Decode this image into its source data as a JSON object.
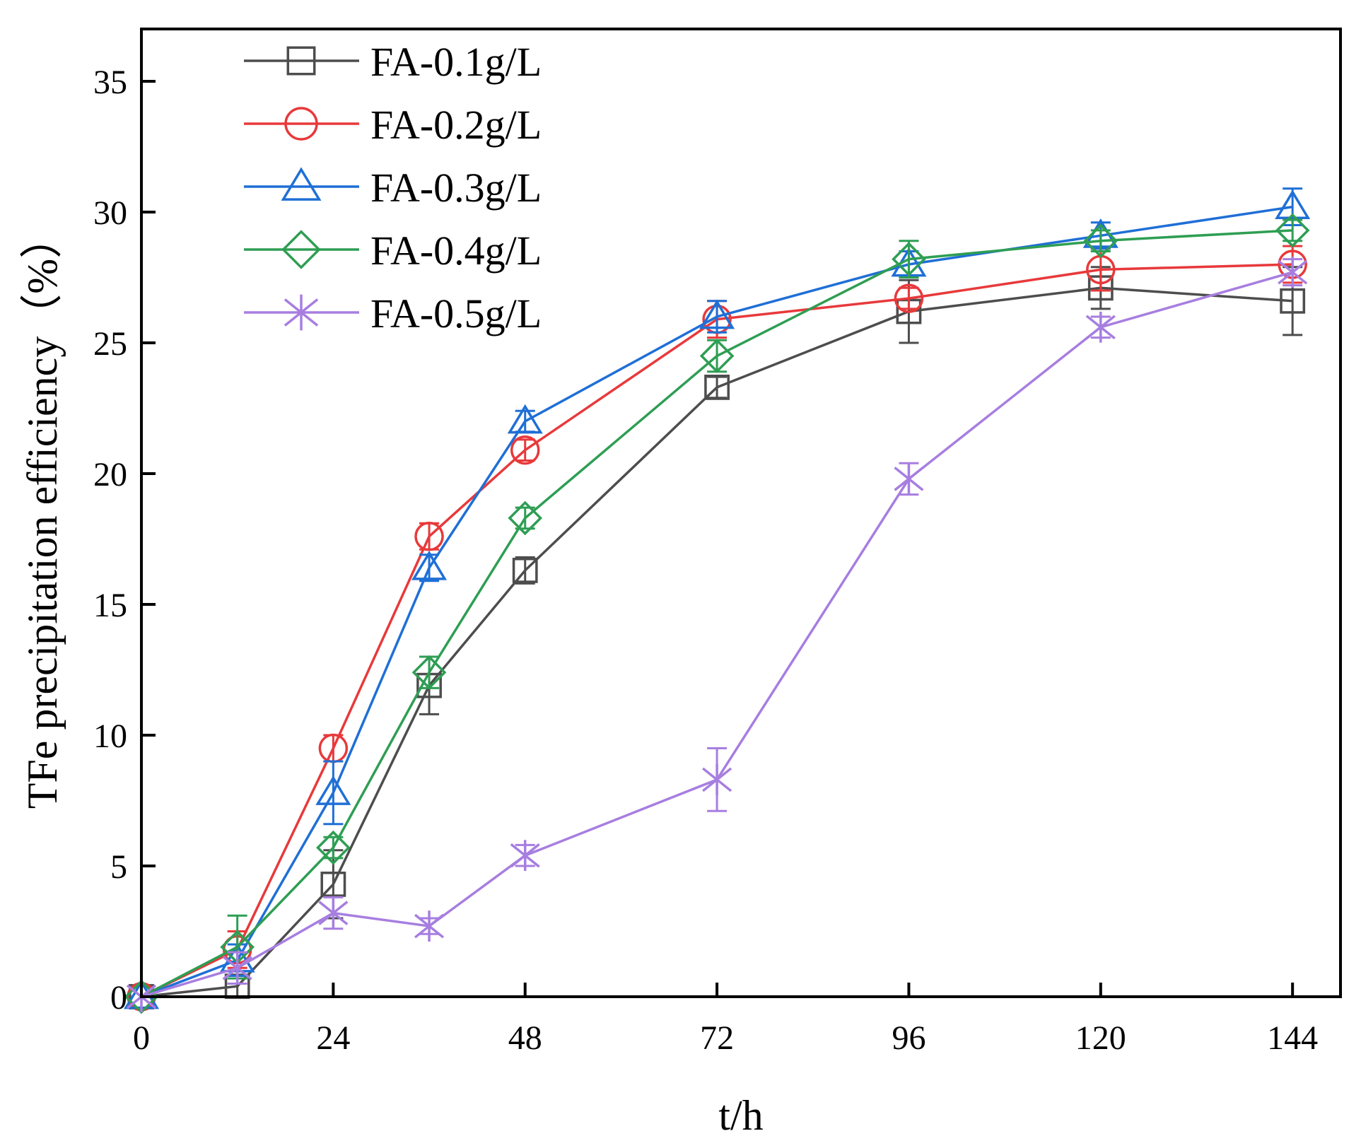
{
  "chart_data": {
    "type": "line",
    "title": "",
    "xlabel": "t/h",
    "ylabel": "TFe precipitation efficiency (%)",
    "ylabel_parts": [
      "TFe precipitation efficiency（",
      "%",
      "）"
    ],
    "xlim": [
      0,
      150
    ],
    "ylim": [
      0,
      37
    ],
    "xticks": [
      0,
      24,
      48,
      72,
      96,
      120,
      144
    ],
    "yticks": [
      0,
      5,
      10,
      15,
      20,
      25,
      30,
      35
    ],
    "x": [
      0,
      12,
      24,
      36,
      48,
      72,
      96,
      120,
      144
    ],
    "legend_position": "top-left",
    "series": [
      {
        "name": "FA-0.1g/L",
        "color": "#4d4d4d",
        "marker": "square",
        "values": [
          0,
          0.4,
          4.3,
          11.9,
          16.3,
          23.3,
          26.2,
          27.1,
          26.6
        ],
        "errors": [
          0,
          0.4,
          1.3,
          1.1,
          0.5,
          0.4,
          1.2,
          0.8,
          1.3
        ]
      },
      {
        "name": "FA-0.2g/L",
        "color": "#e8393b",
        "marker": "circle",
        "values": [
          0,
          1.8,
          9.5,
          17.6,
          20.9,
          25.9,
          26.7,
          27.8,
          28.0
        ],
        "errors": [
          0,
          0.7,
          0.5,
          0.5,
          0.4,
          0.7,
          0.4,
          0.8,
          0.7
        ]
      },
      {
        "name": "FA-0.3g/L",
        "color": "#1f6fd6",
        "marker": "triangle",
        "values": [
          0,
          1.4,
          7.8,
          16.4,
          22.0,
          26.0,
          28.0,
          29.1,
          30.2
        ],
        "errors": [
          0,
          0.6,
          1.2,
          0.5,
          0.4,
          0.6,
          0.5,
          0.5,
          0.7
        ]
      },
      {
        "name": "FA-0.4g/L",
        "color": "#2e9e53",
        "marker": "diamond",
        "values": [
          0,
          1.9,
          5.7,
          12.4,
          18.3,
          24.5,
          28.2,
          28.9,
          29.3
        ],
        "errors": [
          0,
          1.2,
          0.4,
          0.6,
          0.4,
          0.6,
          0.7,
          0.4,
          0.4
        ]
      },
      {
        "name": "FA-0.5g/L",
        "color": "#a77ee0",
        "marker": "asterisk",
        "values": [
          0,
          1.1,
          3.2,
          2.7,
          5.4,
          8.3,
          19.8,
          25.6,
          27.7
        ],
        "errors": [
          0,
          0.6,
          0.6,
          0.3,
          0.4,
          1.2,
          0.6,
          0.4,
          0.5
        ]
      }
    ]
  }
}
